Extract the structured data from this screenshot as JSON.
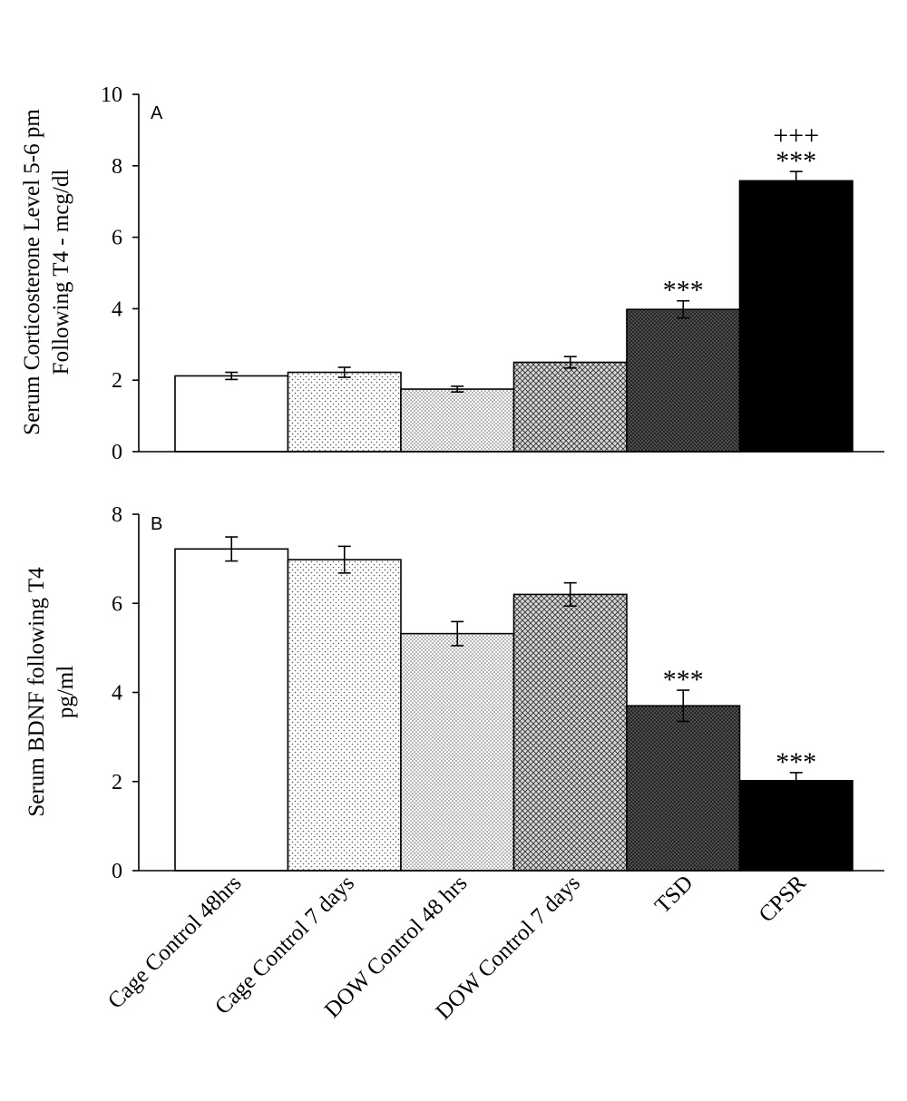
{
  "chart_data": [
    {
      "type": "bar",
      "panel_label": "A",
      "ylabel": [
        "Serum Corticosterone Level 5-6 pm",
        "Following T4  -  mcg/dl"
      ],
      "ylim": [
        0,
        10
      ],
      "yticks": [
        0,
        2,
        4,
        6,
        8,
        10
      ],
      "categories": [
        "Cage Control 48hrs",
        "Cage Control 7 days",
        "DOW Control 48 hrs",
        "DOW Control 7 days",
        "TSD",
        "CPSR"
      ],
      "values": [
        2.12,
        2.22,
        1.75,
        2.5,
        3.98,
        7.58
      ],
      "errors": [
        0.1,
        0.14,
        0.08,
        0.16,
        0.24,
        0.26
      ],
      "annotations": [
        "",
        "",
        "",
        "",
        "***",
        "***"
      ],
      "annotations2": [
        "",
        "",
        "",
        "",
        "",
        "+++"
      ],
      "grid": false
    },
    {
      "type": "bar",
      "panel_label": "B",
      "ylabel": [
        "Serum BDNF following T4",
        "pg/ml"
      ],
      "ylim": [
        0,
        8
      ],
      "yticks": [
        0,
        2,
        4,
        6,
        8
      ],
      "categories": [
        "Cage Control 48hrs",
        "Cage Control 7 days",
        "DOW Control 48 hrs",
        "DOW Control 7 days",
        "TSD",
        "CPSR"
      ],
      "values": [
        7.22,
        6.98,
        5.32,
        6.2,
        3.7,
        2.02
      ],
      "errors": [
        0.27,
        0.3,
        0.27,
        0.26,
        0.35,
        0.18
      ],
      "annotations": [
        "",
        "",
        "",
        "",
        "***",
        "***"
      ],
      "grid": false
    }
  ],
  "style": {
    "bar_fills": [
      "white",
      "dots-sparse",
      "dots-fine",
      "crosshatch",
      "dark-crosshatch",
      "black"
    ],
    "colors": {
      "ink": "#000000",
      "background": "#ffffff"
    }
  }
}
